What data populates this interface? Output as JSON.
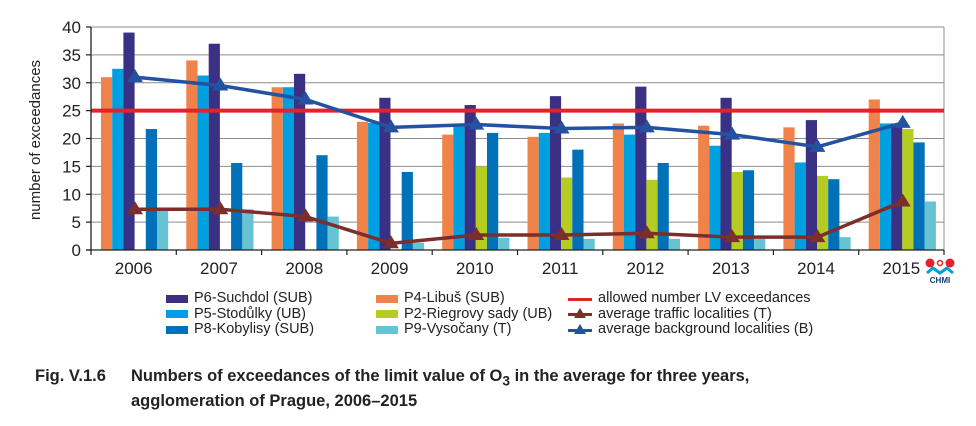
{
  "chart_data": {
    "type": "bar",
    "title": "",
    "xlabel": "",
    "ylabel": "number of exceedances",
    "ylim": [
      0,
      40
    ],
    "yticks": [
      0,
      5,
      10,
      15,
      20,
      25,
      30,
      35,
      40
    ],
    "grid": true,
    "legend_position": "bottom",
    "categories": [
      "2006",
      "2007",
      "2008",
      "2009",
      "2010",
      "2011",
      "2012",
      "2013",
      "2014",
      "2015"
    ],
    "series": [
      {
        "name": "P4-Libuš (SUB)",
        "kind": "bar",
        "color": "#f0834a",
        "values": [
          31,
          34,
          29.2,
          23,
          20.7,
          20.3,
          22.7,
          22.3,
          22,
          27
        ]
      },
      {
        "name": "P5-Stodůlky (UB)",
        "kind": "bar",
        "color": "#00a0e0",
        "values": [
          32.5,
          31.3,
          29.2,
          22.8,
          22.3,
          21,
          20.7,
          18.7,
          15.7,
          22.7
        ]
      },
      {
        "name": "P6-Suchdol (SUB)",
        "kind": "bar",
        "color": "#3a3185",
        "values": [
          39,
          37,
          31.6,
          27.3,
          26,
          27.6,
          29.3,
          27.3,
          23.3,
          22.7
        ]
      },
      {
        "name": "P2-Riegrovy sady (UB)",
        "kind": "bar",
        "color": "#b5cc22",
        "values": [
          null,
          null,
          null,
          null,
          15,
          13,
          12.6,
          14,
          13.3,
          21.7
        ]
      },
      {
        "name": "P8-Kobylisy (SUB)",
        "kind": "bar",
        "color": "#0070b8",
        "values": [
          21.7,
          15.6,
          17,
          14,
          21,
          18,
          15.6,
          14.3,
          12.7,
          19.3
        ]
      },
      {
        "name": "P9-Vysočany (T)",
        "kind": "bar",
        "color": "#66c3d3",
        "values": [
          7,
          7.3,
          6,
          1.3,
          2.2,
          2,
          2,
          2,
          2.3,
          8.7
        ]
      },
      {
        "name": "allowed number LV exceedances",
        "kind": "hline",
        "color": "#e52229",
        "value": 25
      },
      {
        "name": "average traffic localities (T)",
        "kind": "line",
        "color": "#7b2e2a",
        "values": [
          7.3,
          7.3,
          6,
          1.2,
          2.7,
          2.7,
          3,
          2.3,
          2.3,
          8.7
        ]
      },
      {
        "name": "average background localities (B)",
        "kind": "line",
        "color": "#2452a0",
        "values": [
          31,
          29.5,
          27,
          22,
          22.5,
          21.8,
          22,
          20.7,
          18.5,
          22.8
        ]
      }
    ]
  },
  "legend": {
    "col1": [
      {
        "label": "P6-Suchdol (SUB)",
        "color": "#3a3185"
      },
      {
        "label": "P5-Stodůlky (UB)",
        "color": "#00a0e0"
      },
      {
        "label": "P8-Kobylisy (SUB)",
        "color": "#0070b8"
      }
    ],
    "col2": [
      {
        "label": "P4-Libuš (SUB)",
        "color": "#f0834a"
      },
      {
        "label": "P2-Riegrovy sady (UB)",
        "color": "#b5cc22"
      },
      {
        "label": "P9-Vysočany (T)",
        "color": "#66c3d3"
      }
    ],
    "col3": [
      {
        "label": "allowed number LV exceedances",
        "color": "#e52229"
      },
      {
        "label": "average traffic localities (T)",
        "color": "#7b2e2a"
      },
      {
        "label": "average background localities (B)",
        "color": "#2452a0"
      }
    ]
  },
  "caption": {
    "number": "Fig. V.1.6",
    "line1_pre": "Numbers of exceedances of the limit value of O",
    "subscript": "3",
    "line1_post": " in the average for three years,",
    "line2": "agglomeration of Prague, 2006–2015"
  },
  "logo": {
    "text": "CHMI"
  }
}
